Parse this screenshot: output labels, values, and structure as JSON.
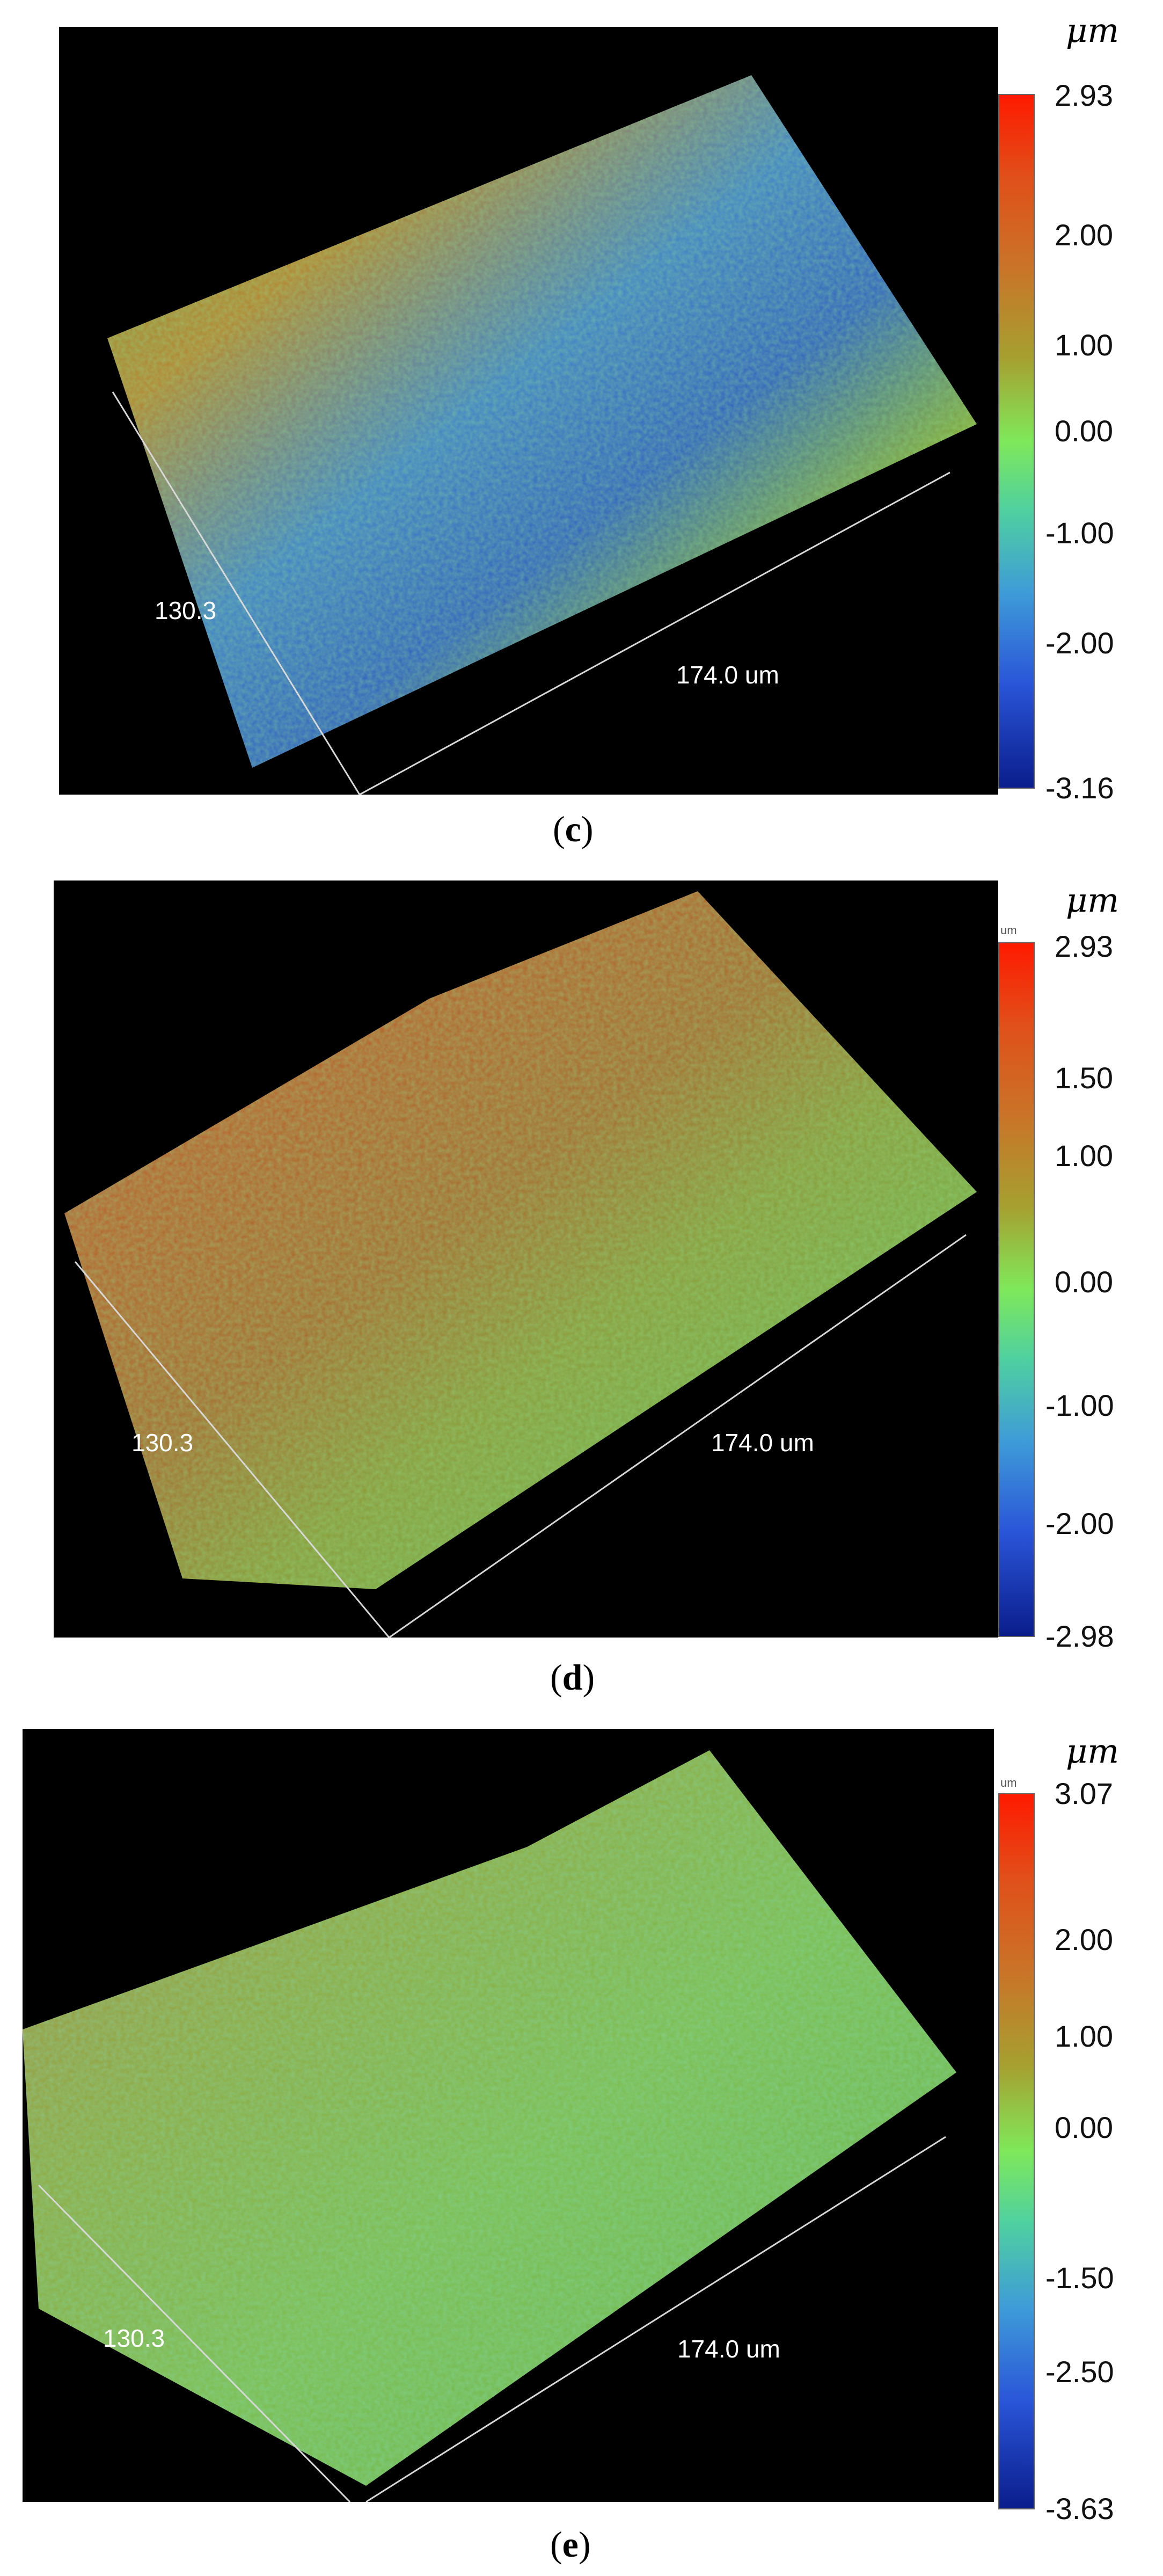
{
  "panels": [
    {
      "id": "c",
      "caption_letter": "c",
      "axis_left": "130.3",
      "axis_right": "174.0 um",
      "unit": "μm",
      "colorbar_labels": [
        "2.93",
        "2.00",
        "1.00",
        "0.00",
        "-1.00",
        "-2.00",
        "-3.16"
      ]
    },
    {
      "id": "d",
      "caption_letter": "d",
      "axis_left": "130.3",
      "axis_right": "174.0 um",
      "unit": "μm",
      "unit_small": "um",
      "colorbar_labels": [
        "2.93",
        "1.50",
        "1.00",
        "0.00",
        "-1.00",
        "-2.00",
        "-2.98"
      ]
    },
    {
      "id": "e",
      "caption_letter": "e",
      "axis_left": "130.3",
      "axis_right": "174.0 um",
      "unit": "μm",
      "unit_small": "um",
      "colorbar_labels": [
        "3.07",
        "2.00",
        "1.00",
        "0.00",
        "-1.50",
        "-2.50",
        "-3.63"
      ]
    }
  ]
}
